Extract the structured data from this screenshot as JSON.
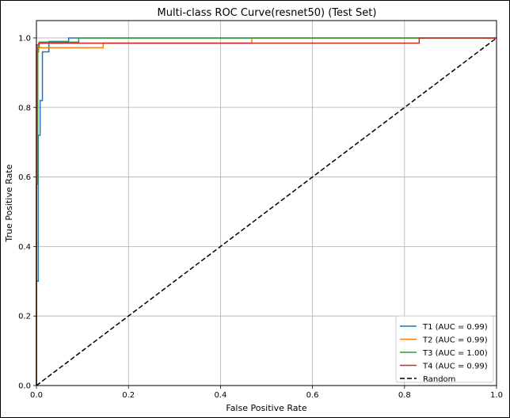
{
  "chart_data": {
    "type": "line",
    "title": "Multi-class ROC Curve(resnet50) (Test Set)",
    "xlabel": "False Positive Rate",
    "ylabel": "True Positive Rate",
    "xlim": [
      0.0,
      1.0
    ],
    "ylim": [
      0.0,
      1.05
    ],
    "xticks": [
      "0.0",
      "0.2",
      "0.4",
      "0.6",
      "0.8",
      "1.0"
    ],
    "yticks": [
      "0.0",
      "0.2",
      "0.4",
      "0.6",
      "0.8",
      "1.0"
    ],
    "grid": true,
    "legend_position": "lower right",
    "series": [
      {
        "name": "T1 (AUC = 0.99)",
        "color": "#1f77b4",
        "style": "solid",
        "points": [
          [
            0.0,
            0.0
          ],
          [
            0.0,
            0.3
          ],
          [
            0.004,
            0.3
          ],
          [
            0.004,
            0.72
          ],
          [
            0.008,
            0.72
          ],
          [
            0.008,
            0.82
          ],
          [
            0.013,
            0.82
          ],
          [
            0.013,
            0.96
          ],
          [
            0.027,
            0.96
          ],
          [
            0.027,
            0.99
          ],
          [
            0.07,
            0.99
          ],
          [
            0.07,
            1.0
          ],
          [
            1.0,
            1.0
          ]
        ]
      },
      {
        "name": "T2 (AUC = 0.99)",
        "color": "#ff7f0e",
        "style": "solid",
        "points": [
          [
            0.0,
            0.0
          ],
          [
            0.0,
            0.96
          ],
          [
            0.005,
            0.96
          ],
          [
            0.005,
            0.972
          ],
          [
            0.145,
            0.972
          ],
          [
            0.145,
            0.985
          ],
          [
            0.468,
            0.985
          ],
          [
            0.468,
            1.0
          ],
          [
            1.0,
            1.0
          ]
        ]
      },
      {
        "name": "T3 (AUC = 1.00)",
        "color": "#2ca02c",
        "style": "solid",
        "points": [
          [
            0.0,
            0.0
          ],
          [
            0.0,
            0.58
          ],
          [
            0.003,
            0.58
          ],
          [
            0.003,
            0.975
          ],
          [
            0.006,
            0.975
          ],
          [
            0.006,
            0.988
          ],
          [
            0.092,
            0.988
          ],
          [
            0.092,
            1.0
          ],
          [
            1.0,
            1.0
          ]
        ]
      },
      {
        "name": "T4 (AUC = 0.99)",
        "color": "#d62728",
        "style": "solid",
        "points": [
          [
            0.0,
            0.0
          ],
          [
            0.0,
            0.98
          ],
          [
            0.005,
            0.98
          ],
          [
            0.005,
            0.985
          ],
          [
            0.832,
            0.985
          ],
          [
            0.832,
            1.0
          ],
          [
            1.0,
            1.0
          ]
        ]
      },
      {
        "name": "Random",
        "color": "#000000",
        "style": "dashed",
        "points": [
          [
            0.0,
            0.0
          ],
          [
            1.0,
            1.0
          ]
        ]
      }
    ]
  }
}
